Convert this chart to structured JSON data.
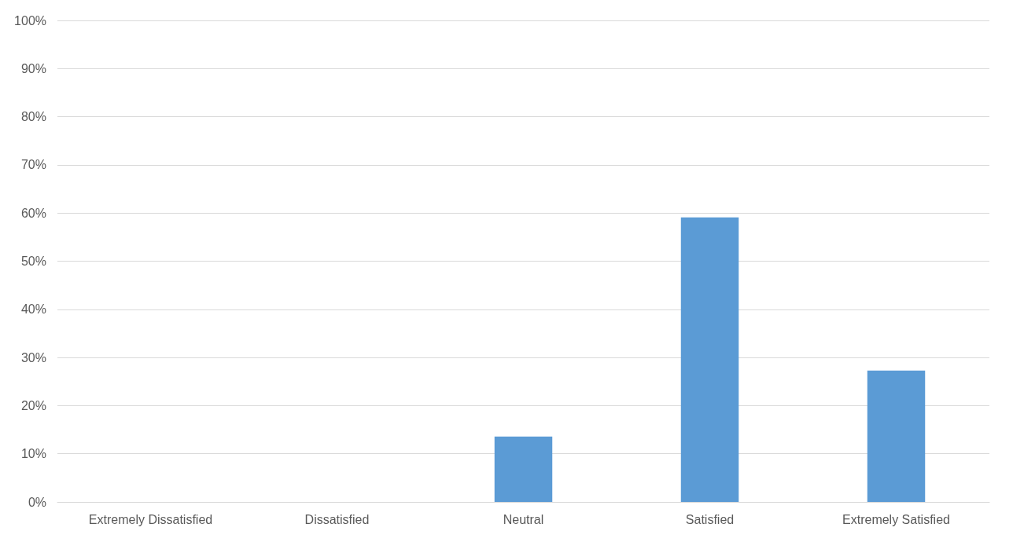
{
  "chart_data": {
    "type": "bar",
    "categories": [
      "Extremely Dissatisfied",
      "Dissatisfied",
      "Neutral",
      "Satisfied",
      "Extremely Satisfied"
    ],
    "values": [
      0,
      0,
      13.6,
      59.1,
      27.3
    ],
    "color": "#5b9bd5",
    "ylim": [
      0,
      100
    ],
    "yticks": [
      {
        "value": 0,
        "label": "0%"
      },
      {
        "value": 10,
        "label": "10%"
      },
      {
        "value": 20,
        "label": "20%"
      },
      {
        "value": 30,
        "label": "30%"
      },
      {
        "value": 40,
        "label": "40%"
      },
      {
        "value": 50,
        "label": "50%"
      },
      {
        "value": 60,
        "label": "60%"
      },
      {
        "value": 70,
        "label": "70%"
      },
      {
        "value": 80,
        "label": "80%"
      },
      {
        "value": 90,
        "label": "90%"
      },
      {
        "value": 100,
        "label": "100%"
      }
    ],
    "grid": "y"
  }
}
